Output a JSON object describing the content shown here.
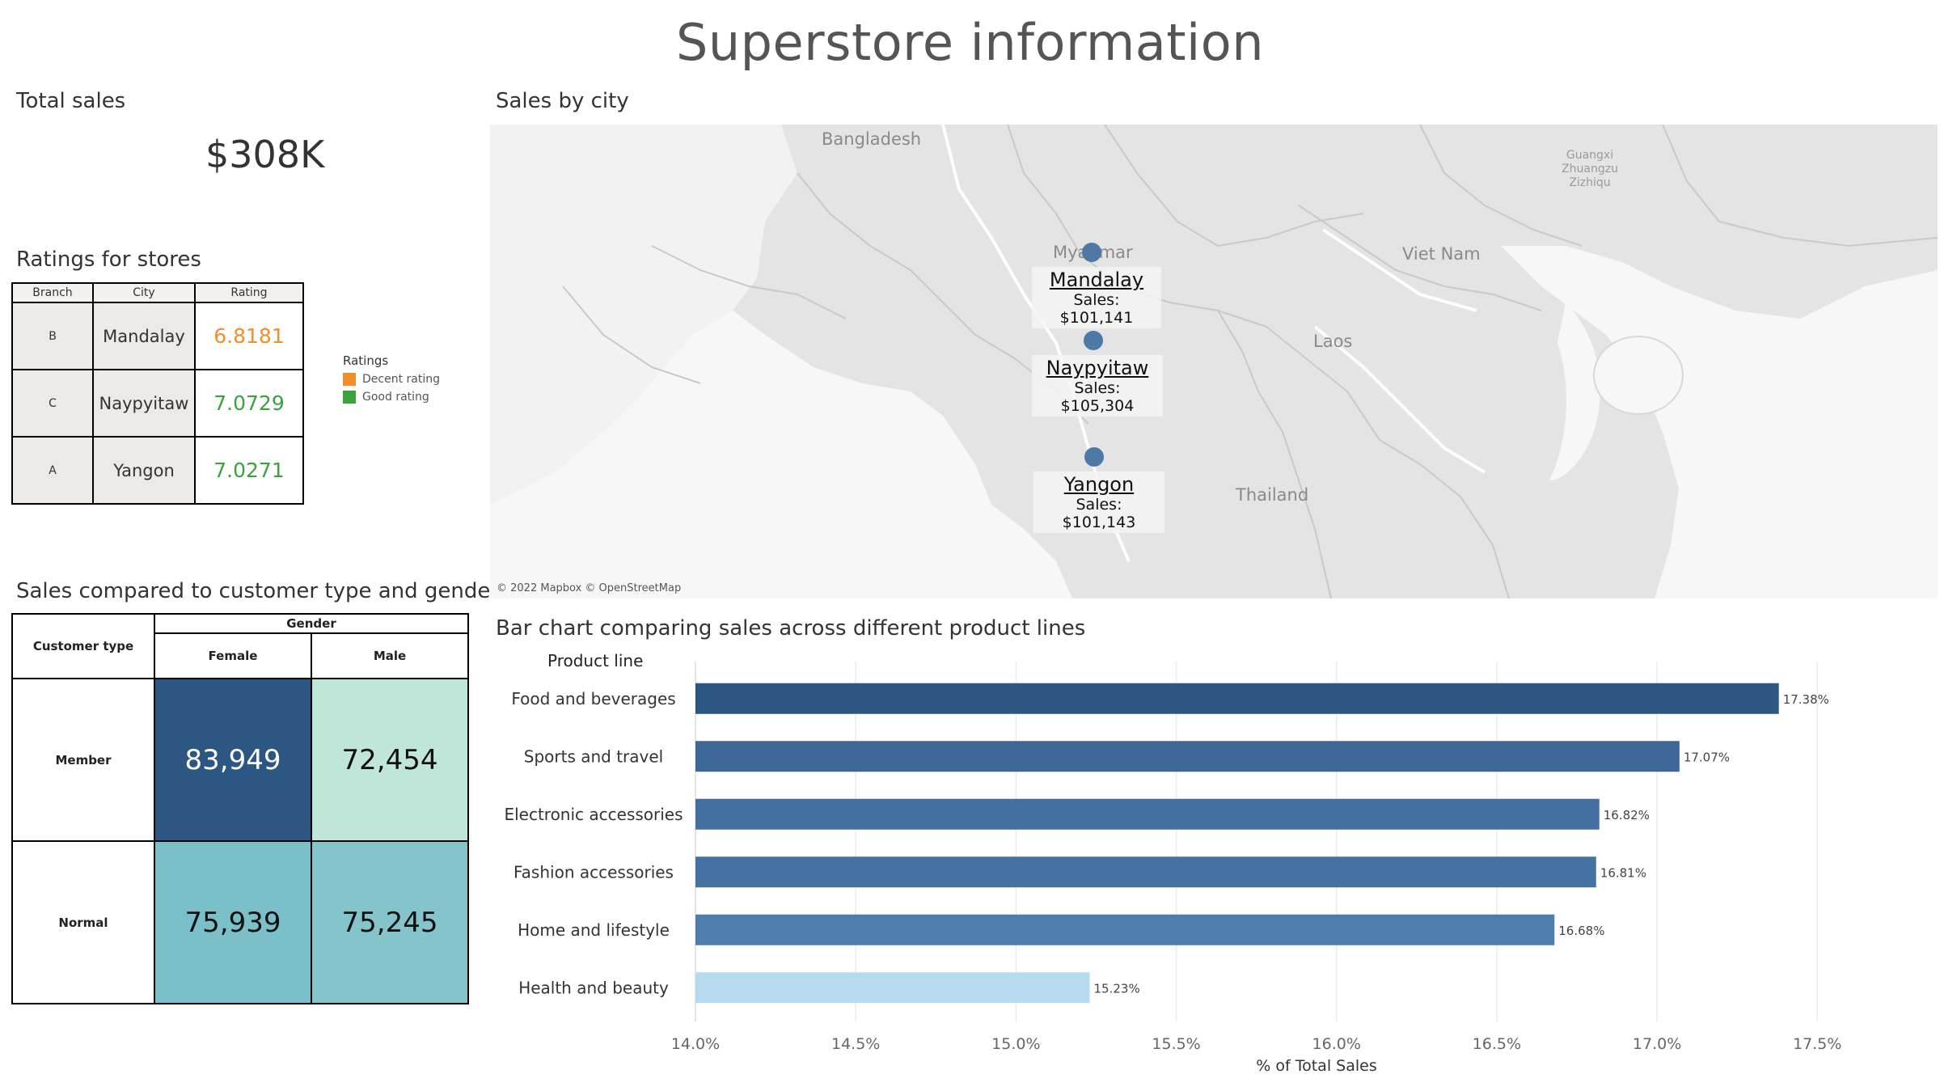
{
  "dashboard_title": "Superstore information",
  "kpi": {
    "title": "Total sales",
    "value": "$308K"
  },
  "ratings": {
    "title": "Ratings for stores",
    "headers": [
      "Branch",
      "City",
      "Rating"
    ],
    "rows": [
      {
        "branch": "B",
        "city": "Mandalay",
        "rating": "6.8181",
        "color": "#f28e2b"
      },
      {
        "branch": "C",
        "city": "Naypyitaw",
        "rating": "7.0729",
        "color": "#3aa33a"
      },
      {
        "branch": "A",
        "city": "Yangon",
        "rating": "7.0271",
        "color": "#3aa33a"
      }
    ],
    "legend": {
      "title": "Ratings",
      "items": [
        {
          "label": "Decent rating",
          "color": "#f28e2b"
        },
        {
          "label": "Good rating",
          "color": "#3aa33a"
        }
      ]
    }
  },
  "crosstab": {
    "title": "Sales compared to customer type and gender",
    "column_group": "Gender",
    "row_header": "Customer type",
    "columns": [
      "Female",
      "Male"
    ],
    "rows": [
      {
        "label": "Member",
        "values": [
          "83,949",
          "72,454"
        ],
        "colors": [
          "#2c5783",
          "#bfe6d9"
        ],
        "text_colors": [
          "#ffffff",
          "#111111"
        ]
      },
      {
        "label": "Normal",
        "values": [
          "75,939",
          "75,245"
        ],
        "colors": [
          "#7bbfc8",
          "#84c5cc"
        ],
        "text_colors": [
          "#111111",
          "#111111"
        ]
      }
    ]
  },
  "map": {
    "title": "Sales by city",
    "attribution": "© 2022 Mapbox © OpenStreetMap",
    "place_labels": [
      "Bangladesh",
      "Myanmar",
      "Viet Nam",
      "Laos",
      "Thailand",
      "Guangxi",
      "Zhuangzu",
      "Zizhiqu"
    ],
    "cities": [
      {
        "name": "Mandalay",
        "sales_label": "Sales: $101,141"
      },
      {
        "name": "Naypyitaw",
        "sales_label": "Sales: $105,304"
      },
      {
        "name": "Yangon",
        "sales_label": "Sales: $101,143"
      }
    ],
    "marker_color": "#4e79a7"
  },
  "chart_data": {
    "type": "bar",
    "orientation": "horizontal",
    "title": "Bar chart comparing sales across different product lines",
    "category_header": "Product line",
    "xlabel": "% of Total Sales",
    "categories": [
      "Food and beverages",
      "Sports and travel",
      "Electronic accessories",
      "Fashion accessories",
      "Home and lifestyle",
      "Health and beauty"
    ],
    "values": [
      17.38,
      17.07,
      16.82,
      16.81,
      16.68,
      15.23
    ],
    "data_labels": [
      "17.38%",
      "17.07%",
      "16.82%",
      "16.81%",
      "16.68%",
      "15.23%"
    ],
    "colors": [
      "#2c5783",
      "#3d6796",
      "#4470a0",
      "#4572a2",
      "#4e7eab",
      "#b7dbee"
    ],
    "xlim": [
      14.0,
      17.85
    ],
    "xticks": [
      14.0,
      14.5,
      15.0,
      15.5,
      16.0,
      16.5,
      17.0,
      17.5
    ],
    "xtick_labels": [
      "14.0%",
      "14.5%",
      "15.0%",
      "15.5%",
      "16.0%",
      "16.5%",
      "17.0%",
      "17.5%"
    ],
    "grid": true
  }
}
